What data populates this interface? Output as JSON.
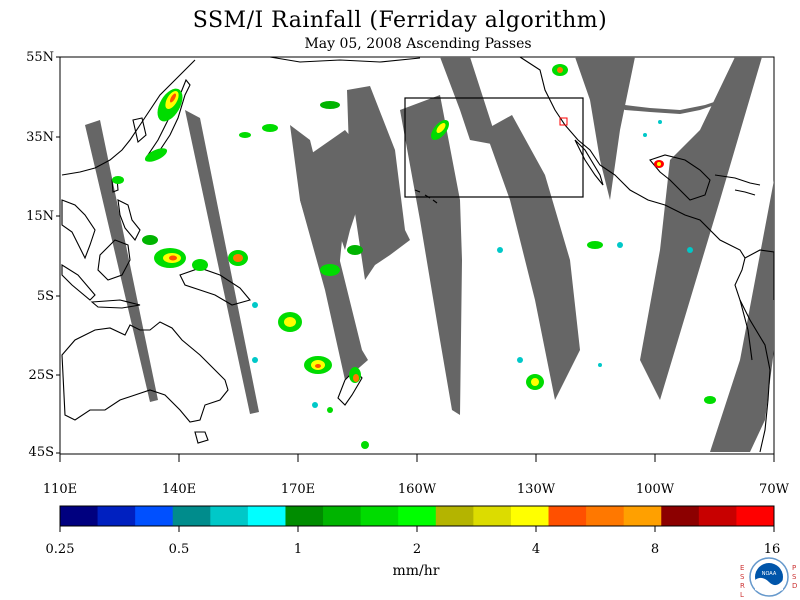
{
  "title": "SSM/I Rainfall (Ferriday algorithm)",
  "subtitle": "May 05, 2008  Ascending Passes",
  "lat_labels": [
    "55N",
    "35N",
    "15N",
    "5S",
    "25S",
    "45S"
  ],
  "lon_labels": [
    "110E",
    "140E",
    "170E",
    "160W",
    "130W",
    "100W",
    "70W"
  ],
  "colorbar": {
    "colors": [
      "#00007f",
      "#0020c0",
      "#0050ff",
      "#008c8c",
      "#00c8c8",
      "#00ffff",
      "#008c00",
      "#00b400",
      "#00dc00",
      "#00ff00",
      "#b4b400",
      "#dcdc00",
      "#ffff00",
      "#ff5000",
      "#ff7800",
      "#ffa000",
      "#8c0000",
      "#c80000",
      "#ff0000"
    ],
    "tick_labels": [
      "0.25",
      "0.5",
      "1",
      "2",
      "4",
      "8",
      "16"
    ],
    "units": "mm/hr"
  },
  "colors": {
    "swath_gap": "#666666",
    "coast": "#000000",
    "land": "#ffffff"
  },
  "logo": {
    "left_text": "ESRL",
    "right_text": "PSD",
    "center_text": "NOAA"
  }
}
